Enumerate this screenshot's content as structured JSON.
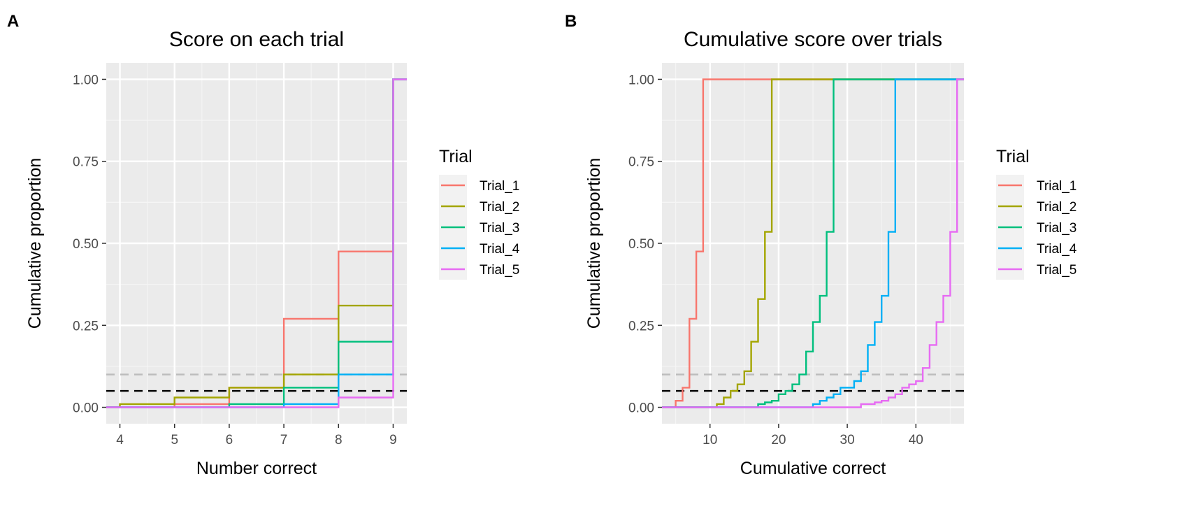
{
  "chart_data": [
    {
      "panel_label": "A",
      "type": "line",
      "step": true,
      "title": "Score on each trial",
      "xlabel": "Number correct",
      "ylabel": "Cumulative proportion",
      "xlim": [
        3.75,
        9.25
      ],
      "ylim": [
        -0.05,
        1.05
      ],
      "x_ticks": [
        4,
        5,
        6,
        7,
        8,
        9
      ],
      "y_ticks": [
        0.0,
        0.25,
        0.5,
        0.75,
        1.0
      ],
      "y_tick_labels": [
        "0.00",
        "0.25",
        "0.50",
        "0.75",
        "1.00"
      ],
      "grid": true,
      "reference_lines": [
        {
          "y": 0.1,
          "color": "#bdbdbd",
          "style": "dashed"
        },
        {
          "y": 0.05,
          "color": "#000000",
          "style": "dashed"
        }
      ],
      "legend": {
        "title": "Trial",
        "position": "right"
      },
      "series": [
        {
          "name": "Trial_1",
          "color": "#F8766D",
          "points": [
            [
              3.75,
              0
            ],
            [
              4,
              0
            ],
            [
              5,
              0.01
            ],
            [
              6,
              0.06
            ],
            [
              7,
              0.27
            ],
            [
              8,
              0.475
            ],
            [
              9,
              1
            ],
            [
              9.25,
              1
            ]
          ]
        },
        {
          "name": "Trial_2",
          "color": "#A3A500",
          "points": [
            [
              3.75,
              0
            ],
            [
              4,
              0.01
            ],
            [
              5,
              0.03
            ],
            [
              6,
              0.06
            ],
            [
              7,
              0.1
            ],
            [
              8,
              0.31
            ],
            [
              9,
              1
            ],
            [
              9.25,
              1
            ]
          ]
        },
        {
          "name": "Trial_3",
          "color": "#00BF7D",
          "points": [
            [
              3.75,
              0
            ],
            [
              4,
              0
            ],
            [
              5,
              0
            ],
            [
              6,
              0.01
            ],
            [
              7,
              0.06
            ],
            [
              8,
              0.2
            ],
            [
              9,
              1
            ],
            [
              9.25,
              1
            ]
          ]
        },
        {
          "name": "Trial_4",
          "color": "#00B0F6",
          "points": [
            [
              3.75,
              0
            ],
            [
              4,
              0
            ],
            [
              5,
              0
            ],
            [
              6,
              0
            ],
            [
              7,
              0.01
            ],
            [
              8,
              0.1
            ],
            [
              9,
              1
            ],
            [
              9.25,
              1
            ]
          ]
        },
        {
          "name": "Trial_5",
          "color": "#E76BF3",
          "points": [
            [
              3.75,
              0
            ],
            [
              4,
              0
            ],
            [
              5,
              0
            ],
            [
              6,
              0
            ],
            [
              7,
              0
            ],
            [
              8,
              0.03
            ],
            [
              9,
              1
            ],
            [
              9.25,
              1
            ]
          ]
        }
      ]
    },
    {
      "panel_label": "B",
      "type": "line",
      "step": true,
      "title": "Cumulative score over trials",
      "xlabel": "Cumulative correct",
      "ylabel": "Cumulative proportion",
      "xlim": [
        3,
        47
      ],
      "ylim": [
        -0.05,
        1.05
      ],
      "x_ticks": [
        10,
        20,
        30,
        40
      ],
      "y_ticks": [
        0.0,
        0.25,
        0.5,
        0.75,
        1.0
      ],
      "y_tick_labels": [
        "0.00",
        "0.25",
        "0.50",
        "0.75",
        "1.00"
      ],
      "grid": true,
      "reference_lines": [
        {
          "y": 0.1,
          "color": "#bdbdbd",
          "style": "dashed"
        },
        {
          "y": 0.05,
          "color": "#000000",
          "style": "dashed"
        }
      ],
      "legend": {
        "title": "Trial",
        "position": "right"
      },
      "series": [
        {
          "name": "Trial_1",
          "color": "#F8766D",
          "points": [
            [
              3,
              0
            ],
            [
              5,
              0.02
            ],
            [
              6,
              0.06
            ],
            [
              7,
              0.27
            ],
            [
              8,
              0.475
            ],
            [
              9,
              1
            ],
            [
              47,
              1
            ]
          ]
        },
        {
          "name": "Trial_2",
          "color": "#A3A500",
          "points": [
            [
              3,
              0
            ],
            [
              10,
              0
            ],
            [
              11,
              0.01
            ],
            [
              12,
              0.03
            ],
            [
              13,
              0.05
            ],
            [
              14,
              0.07
            ],
            [
              15,
              0.11
            ],
            [
              16,
              0.2
            ],
            [
              17,
              0.33
            ],
            [
              18,
              0.535
            ],
            [
              19,
              1
            ],
            [
              47,
              1
            ]
          ]
        },
        {
          "name": "Trial_3",
          "color": "#00BF7D",
          "points": [
            [
              3,
              0
            ],
            [
              16,
              0
            ],
            [
              17,
              0.01
            ],
            [
              18,
              0.015
            ],
            [
              19,
              0.02
            ],
            [
              20,
              0.04
            ],
            [
              21,
              0.05
            ],
            [
              22,
              0.07
            ],
            [
              23,
              0.1
            ],
            [
              24,
              0.17
            ],
            [
              25,
              0.26
            ],
            [
              26,
              0.34
            ],
            [
              27,
              0.535
            ],
            [
              28,
              1
            ],
            [
              47,
              1
            ]
          ]
        },
        {
          "name": "Trial_4",
          "color": "#00B0F6",
          "points": [
            [
              3,
              0
            ],
            [
              24,
              0
            ],
            [
              25,
              0.01
            ],
            [
              26,
              0.02
            ],
            [
              27,
              0.03
            ],
            [
              28,
              0.04
            ],
            [
              29,
              0.06
            ],
            [
              30,
              0.06
            ],
            [
              31,
              0.08
            ],
            [
              32,
              0.11
            ],
            [
              33,
              0.19
            ],
            [
              34,
              0.26
            ],
            [
              35,
              0.34
            ],
            [
              36,
              0.535
            ],
            [
              37,
              1
            ],
            [
              47,
              1
            ]
          ]
        },
        {
          "name": "Trial_5",
          "color": "#E76BF3",
          "points": [
            [
              3,
              0
            ],
            [
              31,
              0
            ],
            [
              32,
              0.01
            ],
            [
              33,
              0.01
            ],
            [
              34,
              0.015
            ],
            [
              35,
              0.02
            ],
            [
              36,
              0.03
            ],
            [
              37,
              0.04
            ],
            [
              38,
              0.06
            ],
            [
              39,
              0.07
            ],
            [
              40,
              0.08
            ],
            [
              41,
              0.12
            ],
            [
              42,
              0.19
            ],
            [
              43,
              0.26
            ],
            [
              44,
              0.34
            ],
            [
              45,
              0.535
            ],
            [
              46,
              1
            ],
            [
              47,
              1
            ]
          ]
        }
      ]
    }
  ]
}
